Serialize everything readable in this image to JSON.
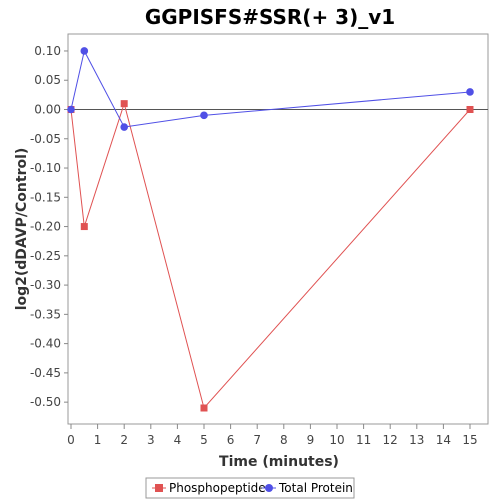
{
  "chart_data": {
    "type": "line",
    "title": "GGPISFS#SSR(+ 3)_v1",
    "xlabel": "Time (minutes)",
    "ylabel": "log2(dDAVP/Control)",
    "xlim": [
      0,
      15.7
    ],
    "ylim": [
      -0.54,
      0.125
    ],
    "xticks": [
      0,
      1,
      2,
      3,
      4,
      5,
      6,
      7,
      8,
      9,
      10,
      11,
      12,
      13,
      14,
      15
    ],
    "yticks": [
      0.1,
      0.05,
      0.0,
      -0.05,
      -0.1,
      -0.15,
      -0.2,
      -0.25,
      -0.3,
      -0.35,
      -0.4,
      -0.45,
      -0.5
    ],
    "ytick_labels": [
      "0.10",
      "0.05",
      "0.00",
      "-0.05",
      "-0.10",
      "-0.15",
      "-0.20",
      "-0.25",
      "-0.30",
      "-0.35",
      "-0.40",
      "-0.45",
      "-0.50"
    ],
    "zero_line": true,
    "grid": false,
    "legend_position": "bottom",
    "series": [
      {
        "name": "Phosphopeptide",
        "color": "#e05252",
        "marker": "square",
        "x": [
          0,
          0.5,
          2,
          5,
          15
        ],
        "y": [
          0.0,
          -0.2,
          0.01,
          -0.51,
          0.0
        ]
      },
      {
        "name": "Total Protein",
        "color": "#5050e6",
        "marker": "circle",
        "x": [
          0,
          0.5,
          2,
          5,
          15
        ],
        "y": [
          0.0,
          0.1,
          -0.03,
          -0.01,
          0.03
        ]
      }
    ]
  }
}
